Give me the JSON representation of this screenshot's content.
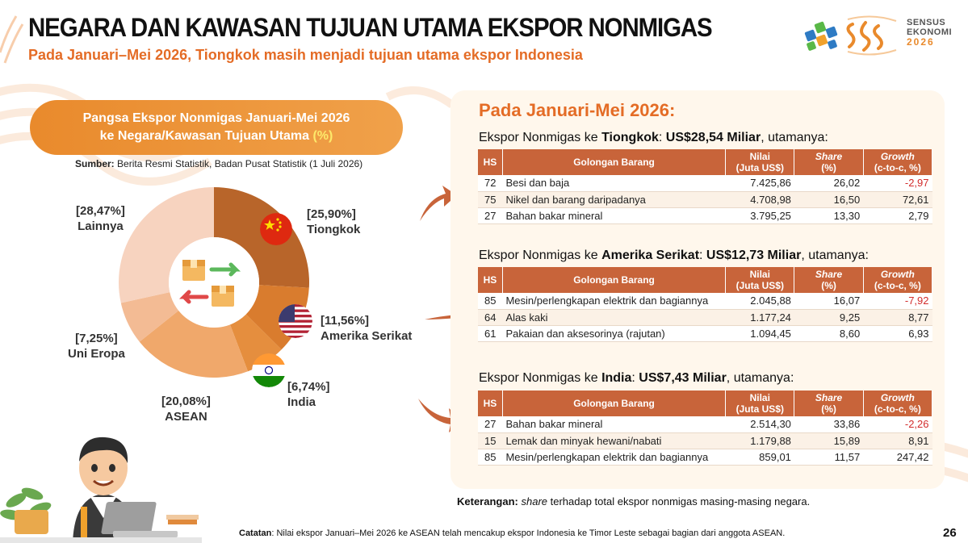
{
  "header": {
    "title": "NEGARA DAN KAWASAN TUJUAN UTAMA EKSPOR NONMIGAS",
    "subtitle": "Pada Januari–Mei 2026, Tiongkok masih menjadi tujuan utama ekspor Indonesia",
    "logo_line1": "SENSUS",
    "logo_line2": "EKONOMI",
    "logo_year": "2026"
  },
  "pill": {
    "line1": "Pangsa Ekspor Nonmigas Januari-Mei 2026",
    "line2": "ke Negara/Kawasan Tujuan Utama",
    "unit": "(%)"
  },
  "source": {
    "label": "Sumber:",
    "text": "Berita Resmi Statistik, Badan Pusat Statistik (1 Juli 2026)"
  },
  "chart_data": {
    "type": "pie",
    "donut": true,
    "categories": [
      "Tiongkok",
      "Amerika Serikat",
      "India",
      "ASEAN",
      "Uni Eropa",
      "Lainnya"
    ],
    "values": [
      25.9,
      11.56,
      6.74,
      20.08,
      7.25,
      28.47
    ],
    "value_labels": [
      "[25,90%]",
      "[11,56%]",
      "[6,74%]",
      "[20,08%]",
      "[7,25%]",
      "[28,47%]"
    ],
    "colors": [
      "#b8652a",
      "#d97c2e",
      "#e58e3e",
      "#f0a86b",
      "#f3bb94",
      "#f7d3bf"
    ]
  },
  "panel": {
    "heading": "Pada Januari-Mei 2026:",
    "columns": {
      "hs": "HS",
      "name": "Golongan Barang",
      "value_l1": "Nilai",
      "value_l2": "(Juta US$)",
      "share_l1": "Share",
      "share_l2": "(%)",
      "growth_l1": "Growth",
      "growth_l2": "(c-to-c, %)"
    },
    "sections": [
      {
        "pre": "Ekspor Nonmigas ke ",
        "country": "Tiongkok",
        "mid": ": ",
        "amount": "US$28,54 Miliar",
        "post": ", utamanya:",
        "rows": [
          {
            "hs": "72",
            "name": "Besi dan baja",
            "value": "7.425,86",
            "share": "26,02",
            "growth": "-2,97",
            "neg": true
          },
          {
            "hs": "75",
            "name": "Nikel dan barang daripadanya",
            "value": "4.708,98",
            "share": "16,50",
            "growth": "72,61",
            "neg": false
          },
          {
            "hs": "27",
            "name": "Bahan bakar mineral",
            "value": "3.795,25",
            "share": "13,30",
            "growth": "2,79",
            "neg": false
          }
        ]
      },
      {
        "pre": "Ekspor Nonmigas ke ",
        "country": "Amerika Serikat",
        "mid": ": ",
        "amount": "US$12,73 Miliar",
        "post": ", utamanya:",
        "rows": [
          {
            "hs": "85",
            "name": "Mesin/perlengkapan elektrik dan bagiannya",
            "value": "2.045,88",
            "share": "16,07",
            "growth": "-7,92",
            "neg": true
          },
          {
            "hs": "64",
            "name": "Alas kaki",
            "value": "1.177,24",
            "share": "9,25",
            "growth": "8,77",
            "neg": false
          },
          {
            "hs": "61",
            "name": "Pakaian dan aksesorinya (rajutan)",
            "value": "1.094,45",
            "share": "8,60",
            "growth": "6,93",
            "neg": false
          }
        ]
      },
      {
        "pre": "Ekspor Nonmigas ke ",
        "country": "India",
        "mid": ": ",
        "amount": "US$7,43 Miliar",
        "post": ", utamanya:",
        "rows": [
          {
            "hs": "27",
            "name": "Bahan bakar mineral",
            "value": "2.514,30",
            "share": "33,86",
            "growth": "-2,26",
            "neg": true
          },
          {
            "hs": "15",
            "name": "Lemak dan minyak hewani/nabati",
            "value": "1.179,88",
            "share": "15,89",
            "growth": "8,91",
            "neg": false
          },
          {
            "hs": "85",
            "name": "Mesin/perlengkapan elektrik dan bagiannya",
            "value": "859,01",
            "share": "11,57",
            "growth": "247,42",
            "neg": false
          }
        ]
      }
    ]
  },
  "keterangan": {
    "label": "Keterangan:",
    "italic": "share",
    "text": " terhadap total ekspor nonmigas masing-masing negara."
  },
  "catatan": {
    "label": "Catatan",
    "text": ": Nilai ekspor Januari–Mei 2026 ke ASEAN telah mencakup ekspor Indonesia ke Timor Leste sebagai bagian dari anggota ASEAN."
  },
  "page_number": "26"
}
